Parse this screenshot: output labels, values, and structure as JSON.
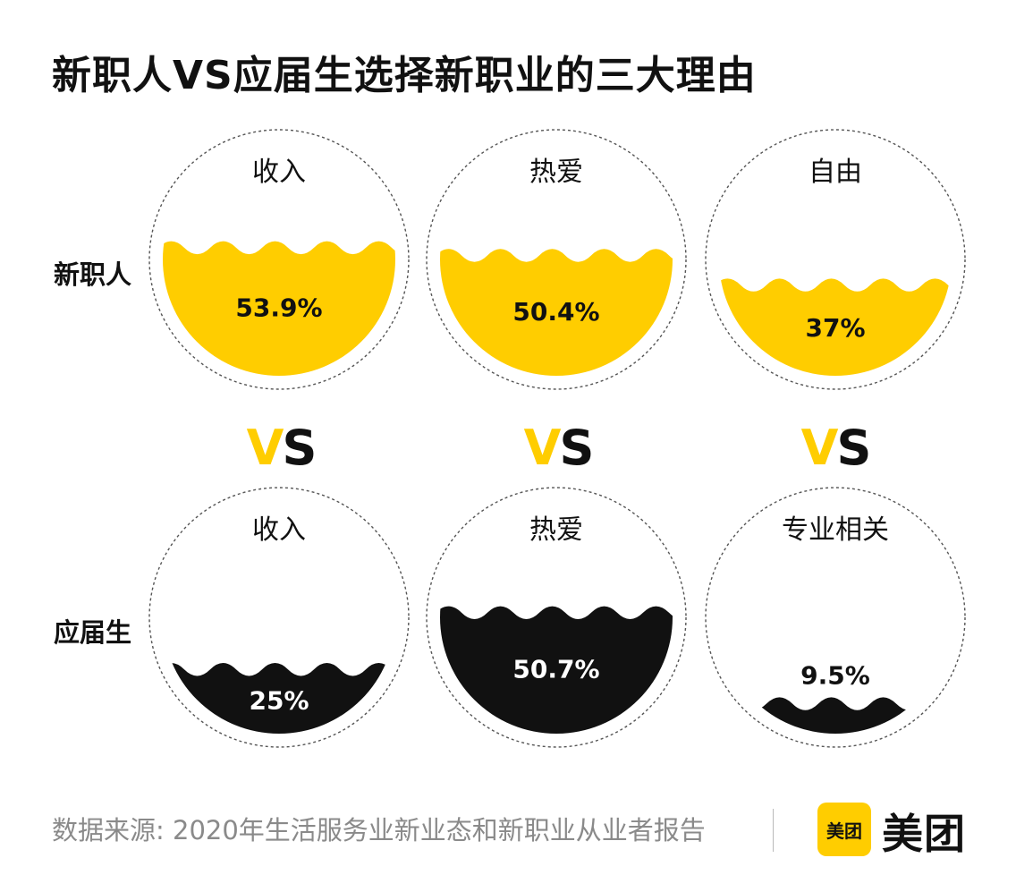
{
  "title": "新职人VS应届生选择新职业的三大理由",
  "vs": {
    "v": "V",
    "s": "S"
  },
  "colors": {
    "new_worker": "#ffcd00",
    "graduate": "#111111",
    "outline": "#555555"
  },
  "chart_data": {
    "type": "liquid-fill-comparison",
    "title": "新职人VS应届生选择新职业的三大理由",
    "rows": [
      "新职人",
      "应届生"
    ],
    "series": [
      {
        "name": "新职人",
        "color": "#ffcd00",
        "label_color": "#111111",
        "items": [
          {
            "reason": "收入",
            "value": 53.9,
            "label": "53.9%"
          },
          {
            "reason": "热爱",
            "value": 50.4,
            "label": "50.4%"
          },
          {
            "reason": "自由",
            "value": 37,
            "label": "37%"
          }
        ]
      },
      {
        "name": "应届生",
        "color": "#111111",
        "label_color": "#ffffff",
        "items": [
          {
            "reason": "收入",
            "value": 25,
            "label": "25%"
          },
          {
            "reason": "热爱",
            "value": 50.7,
            "label": "50.7%"
          },
          {
            "reason": "专业相关",
            "value": 9.5,
            "label": "9.5%"
          }
        ]
      }
    ]
  },
  "source": "数据来源: 2020年生活服务业新业态和新职业从业者报告",
  "brand": {
    "logo_mark": "美团",
    "logo_text": "美团"
  }
}
